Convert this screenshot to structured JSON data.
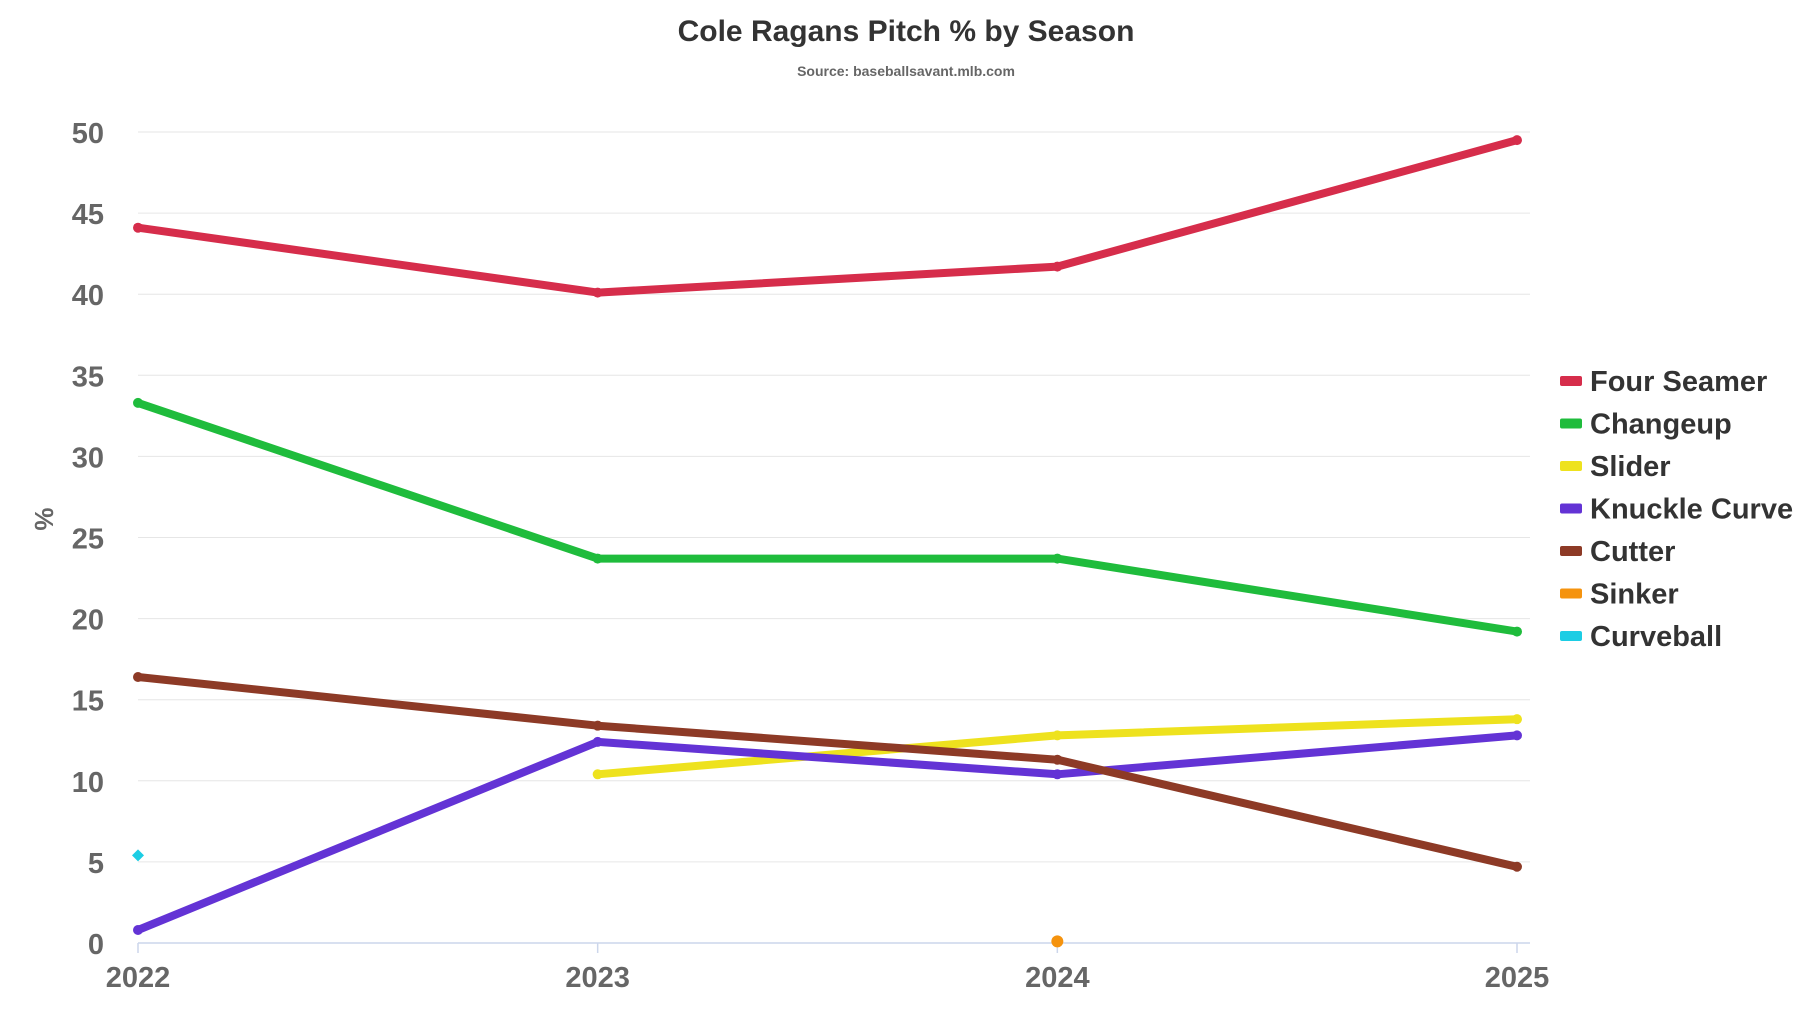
{
  "chart_data": {
    "type": "line",
    "title": "Cole Ragans Pitch % by Season",
    "subtitle": "Source: baseballsavant.mlb.com",
    "xlabel": "",
    "ylabel": "%",
    "categories": [
      "2022",
      "2023",
      "2024",
      "2025"
    ],
    "ylim": [
      0,
      50
    ],
    "yticks": [
      0,
      5,
      10,
      15,
      20,
      25,
      30,
      35,
      40,
      45,
      50
    ],
    "grid": true,
    "legend_position": "right",
    "series": [
      {
        "name": "Four Seamer",
        "color": "#d62d4b",
        "values": [
          44.1,
          40.1,
          41.7,
          49.5
        ]
      },
      {
        "name": "Changeup",
        "color": "#1fbc3c",
        "values": [
          33.3,
          23.7,
          23.7,
          19.2
        ]
      },
      {
        "name": "Slider",
        "color": "#eee21e",
        "values": [
          null,
          10.4,
          12.8,
          13.8
        ]
      },
      {
        "name": "Knuckle Curve",
        "color": "#6333d5",
        "values": [
          0.8,
          12.4,
          10.4,
          12.8
        ]
      },
      {
        "name": "Cutter",
        "color": "#8d3a26",
        "values": [
          16.4,
          13.4,
          11.3,
          4.7
        ]
      },
      {
        "name": "Sinker",
        "color": "#f5930e",
        "values": [
          null,
          null,
          0.1,
          null
        ]
      },
      {
        "name": "Curveball",
        "color": "#1ccde4",
        "values": [
          5.4,
          null,
          null,
          null
        ]
      }
    ]
  }
}
